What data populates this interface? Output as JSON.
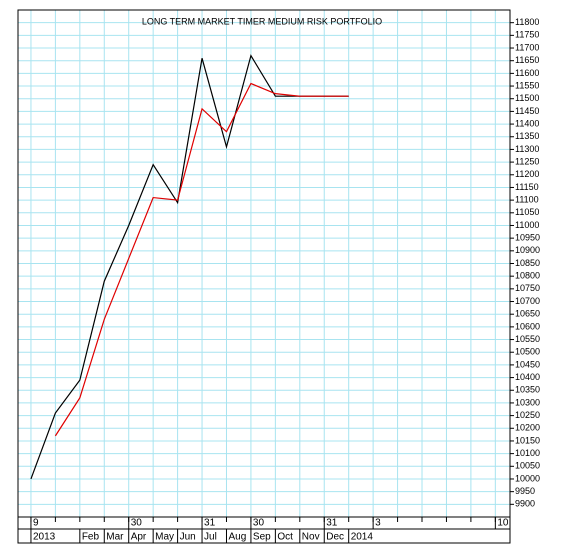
{
  "chart_data": {
    "type": "line",
    "title": "LONG TERM MARKET TIMER MEDIUM RISK PORTFOLIO",
    "x": [
      0,
      1,
      2,
      3,
      4,
      5,
      6,
      7,
      8,
      9,
      10,
      11,
      12,
      13
    ],
    "series": [
      {
        "color": "#000000",
        "values": [
          10000,
          10260,
          10390,
          10780,
          11000,
          11240,
          11090,
          11660,
          11310,
          11670,
          11510,
          11510,
          11510,
          11510
        ]
      },
      {
        "color": "#e00000",
        "values": [
          null,
          10170,
          10320,
          10630,
          10870,
          11110,
          11100,
          11460,
          11370,
          11560,
          11520,
          11510,
          11510,
          11510
        ]
      }
    ],
    "xlim": [
      -0.53,
      19.6
    ],
    "xminor": [
      0,
      1,
      2,
      3,
      4,
      5,
      6,
      7,
      8,
      9,
      10,
      11,
      12,
      13,
      14,
      15,
      16,
      17,
      18,
      19
    ],
    "xticks": [
      {
        "value": 0,
        "label": "9"
      },
      {
        "value": 4,
        "label": "30"
      },
      {
        "value": 7,
        "label": "31"
      },
      {
        "value": 9,
        "label": "30"
      },
      {
        "value": 12,
        "label": "31"
      },
      {
        "value": 14,
        "label": "3"
      },
      {
        "value": 19,
        "label": "10"
      }
    ],
    "xticks2": [
      {
        "value": 0,
        "label": "2013"
      },
      {
        "value": 2,
        "label": "Feb"
      },
      {
        "value": 3,
        "label": "Mar"
      },
      {
        "value": 4,
        "label": "Apr"
      },
      {
        "value": 5,
        "label": "May"
      },
      {
        "value": 6,
        "label": "Jun"
      },
      {
        "value": 7,
        "label": "Jul"
      },
      {
        "value": 8,
        "label": "Aug"
      },
      {
        "value": 9,
        "label": "Sep"
      },
      {
        "value": 10,
        "label": "Oct"
      },
      {
        "value": 11,
        "label": "Nov"
      },
      {
        "value": 12,
        "label": "Dec"
      },
      {
        "value": 13,
        "label": "2014"
      }
    ],
    "ylim": [
      9850,
      11850
    ],
    "yticks": [
      9900,
      9950,
      10000,
      10050,
      10100,
      10150,
      10200,
      10250,
      10300,
      10350,
      10400,
      10450,
      10500,
      10550,
      10600,
      10650,
      10700,
      10750,
      10800,
      10850,
      10900,
      10950,
      11000,
      11050,
      11100,
      11150,
      11200,
      11250,
      11300,
      11350,
      11400,
      11450,
      11500,
      11550,
      11600,
      11650,
      11700,
      11750,
      11800
    ],
    "grid": true
  }
}
